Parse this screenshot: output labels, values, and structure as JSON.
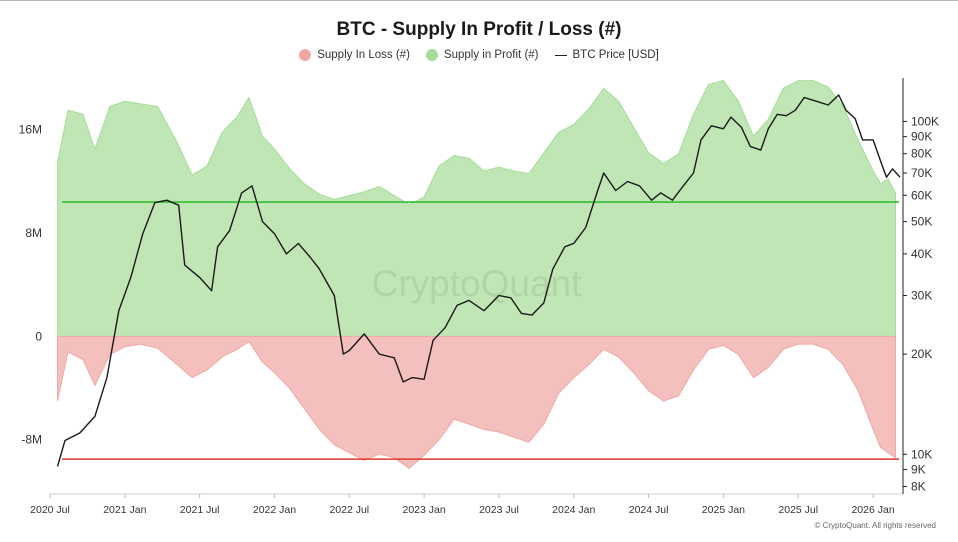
{
  "title": "BTC - Supply In Profit / Loss (#)",
  "legend": [
    {
      "label": "Supply In Loss (#)",
      "color": "#f0a8a4"
    },
    {
      "label": "Supply in Profit (#)",
      "color": "#a7dc98"
    },
    {
      "label": "BTC Price [USD]",
      "color": "#1a1a1a"
    }
  ],
  "watermark": "CryptoQuant",
  "credit": "© CryptoQuant. All rights reserved",
  "chart_data": {
    "type": "area",
    "title": "BTC - Supply In Profit / Loss (#)",
    "x_ticks": [
      "2020 Jul",
      "2021 Jan",
      "2021 Jul",
      "2022 Jan",
      "2022 Jul",
      "2023 Jan",
      "2023 Jul",
      "2024 Jan",
      "2024 Jul",
      "2025 Jan",
      "2025 Jul",
      "2026 Jan"
    ],
    "x_range": [
      "2020 Jul",
      "2026 Mar"
    ],
    "left_axis": {
      "ticks": [
        "16M",
        "8M",
        "0",
        "-8M"
      ],
      "tick_values": [
        16,
        8,
        0,
        -8
      ],
      "unit": "M",
      "range": [
        -12.2,
        20
      ]
    },
    "right_axis": {
      "scale": "log",
      "ticks": [
        "100K",
        "90K",
        "80K",
        "70K",
        "60K",
        "50K",
        "40K",
        "30K",
        "20K",
        "10K",
        "9K",
        "8K"
      ],
      "tick_values": [
        100,
        90,
        80,
        70,
        60,
        50,
        40,
        30,
        20,
        10,
        9,
        8
      ],
      "unit": "K"
    },
    "reference_lines": [
      {
        "axis": "left",
        "value": 10.4,
        "color": "#2fbf2f"
      },
      {
        "axis": "left",
        "value": -9.5,
        "color": "#e0392b"
      }
    ],
    "series": [
      {
        "name": "Supply in Profit (#)",
        "axis": "left",
        "color": "#a7dc98",
        "points": [
          [
            2020.55,
            13.5
          ],
          [
            2020.62,
            17.5
          ],
          [
            2020.72,
            17.2
          ],
          [
            2020.8,
            14.5
          ],
          [
            2020.9,
            17.8
          ],
          [
            2021.0,
            18.2
          ],
          [
            2021.1,
            18.0
          ],
          [
            2021.22,
            17.8
          ],
          [
            2021.35,
            15.0
          ],
          [
            2021.45,
            12.5
          ],
          [
            2021.55,
            13.2
          ],
          [
            2021.65,
            15.8
          ],
          [
            2021.75,
            17.0
          ],
          [
            2021.83,
            18.5
          ],
          [
            2021.92,
            15.5
          ],
          [
            2022.0,
            14.5
          ],
          [
            2022.1,
            13.0
          ],
          [
            2022.2,
            11.8
          ],
          [
            2022.3,
            11.0
          ],
          [
            2022.4,
            10.6
          ],
          [
            2022.5,
            10.9
          ],
          [
            2022.6,
            11.2
          ],
          [
            2022.7,
            11.6
          ],
          [
            2022.8,
            10.9
          ],
          [
            2022.9,
            10.2
          ],
          [
            2023.0,
            10.8
          ],
          [
            2023.1,
            13.2
          ],
          [
            2023.2,
            14.0
          ],
          [
            2023.3,
            13.8
          ],
          [
            2023.4,
            12.8
          ],
          [
            2023.5,
            13.1
          ],
          [
            2023.6,
            12.8
          ],
          [
            2023.7,
            12.6
          ],
          [
            2023.8,
            14.2
          ],
          [
            2023.9,
            15.8
          ],
          [
            2024.0,
            16.4
          ],
          [
            2024.1,
            17.6
          ],
          [
            2024.2,
            19.2
          ],
          [
            2024.3,
            18.2
          ],
          [
            2024.4,
            16.2
          ],
          [
            2024.5,
            14.2
          ],
          [
            2024.6,
            13.4
          ],
          [
            2024.7,
            14.1
          ],
          [
            2024.8,
            17.2
          ],
          [
            2024.9,
            19.5
          ],
          [
            2025.0,
            19.8
          ],
          [
            2025.1,
            18.2
          ],
          [
            2025.2,
            15.5
          ],
          [
            2025.3,
            16.8
          ],
          [
            2025.4,
            19.2
          ],
          [
            2025.5,
            19.8
          ],
          [
            2025.6,
            19.8
          ],
          [
            2025.7,
            19.3
          ],
          [
            2025.8,
            17.8
          ],
          [
            2025.9,
            15.2
          ],
          [
            2026.0,
            12.8
          ],
          [
            2026.05,
            11.8
          ],
          [
            2026.1,
            12.2
          ],
          [
            2026.15,
            11.1
          ]
        ]
      },
      {
        "name": "Supply In Loss (#)",
        "axis": "left",
        "color": "#f0a8a4",
        "points": [
          [
            2020.55,
            -5.0
          ],
          [
            2020.62,
            -1.2
          ],
          [
            2020.72,
            -1.8
          ],
          [
            2020.8,
            -3.8
          ],
          [
            2020.9,
            -1.4
          ],
          [
            2021.0,
            -0.8
          ],
          [
            2021.1,
            -0.6
          ],
          [
            2021.22,
            -0.9
          ],
          [
            2021.35,
            -2.2
          ],
          [
            2021.45,
            -3.2
          ],
          [
            2021.55,
            -2.6
          ],
          [
            2021.65,
            -1.6
          ],
          [
            2021.75,
            -1.0
          ],
          [
            2021.83,
            -0.4
          ],
          [
            2021.92,
            -2.0
          ],
          [
            2022.0,
            -2.8
          ],
          [
            2022.1,
            -4.0
          ],
          [
            2022.2,
            -5.6
          ],
          [
            2022.3,
            -7.2
          ],
          [
            2022.4,
            -8.4
          ],
          [
            2022.5,
            -9.0
          ],
          [
            2022.6,
            -9.6
          ],
          [
            2022.7,
            -9.1
          ],
          [
            2022.8,
            -9.4
          ],
          [
            2022.9,
            -10.2
          ],
          [
            2023.0,
            -9.2
          ],
          [
            2023.1,
            -8.0
          ],
          [
            2023.2,
            -6.4
          ],
          [
            2023.3,
            -6.8
          ],
          [
            2023.4,
            -7.2
          ],
          [
            2023.5,
            -7.4
          ],
          [
            2023.6,
            -7.8
          ],
          [
            2023.7,
            -8.2
          ],
          [
            2023.8,
            -6.8
          ],
          [
            2023.9,
            -4.4
          ],
          [
            2024.0,
            -3.2
          ],
          [
            2024.1,
            -2.2
          ],
          [
            2024.2,
            -1.0
          ],
          [
            2024.3,
            -1.6
          ],
          [
            2024.4,
            -2.8
          ],
          [
            2024.5,
            -4.2
          ],
          [
            2024.6,
            -5.0
          ],
          [
            2024.7,
            -4.6
          ],
          [
            2024.8,
            -2.6
          ],
          [
            2024.9,
            -1.0
          ],
          [
            2025.0,
            -0.7
          ],
          [
            2025.1,
            -1.4
          ],
          [
            2025.2,
            -3.2
          ],
          [
            2025.3,
            -2.4
          ],
          [
            2025.4,
            -1.0
          ],
          [
            2025.5,
            -0.6
          ],
          [
            2025.6,
            -0.6
          ],
          [
            2025.7,
            -1.0
          ],
          [
            2025.8,
            -2.2
          ],
          [
            2025.9,
            -4.2
          ],
          [
            2026.0,
            -7.2
          ],
          [
            2026.05,
            -8.6
          ],
          [
            2026.1,
            -9.0
          ],
          [
            2026.15,
            -9.4
          ]
        ]
      },
      {
        "name": "BTC Price [USD]",
        "axis": "right",
        "color": "#1a1a1a",
        "points": [
          [
            2020.55,
            9.2
          ],
          [
            2020.6,
            11.0
          ],
          [
            2020.7,
            11.6
          ],
          [
            2020.8,
            13.0
          ],
          [
            2020.88,
            17.0
          ],
          [
            2020.96,
            27.0
          ],
          [
            2021.04,
            34.0
          ],
          [
            2021.12,
            46.0
          ],
          [
            2021.2,
            57.0
          ],
          [
            2021.28,
            58.0
          ],
          [
            2021.36,
            56.0
          ],
          [
            2021.4,
            37.0
          ],
          [
            2021.5,
            34.0
          ],
          [
            2021.58,
            31.0
          ],
          [
            2021.62,
            42.0
          ],
          [
            2021.7,
            47.0
          ],
          [
            2021.78,
            61.0
          ],
          [
            2021.85,
            64.0
          ],
          [
            2021.92,
            50.0
          ],
          [
            2022.0,
            46.0
          ],
          [
            2022.08,
            40.0
          ],
          [
            2022.16,
            43.0
          ],
          [
            2022.24,
            39.0
          ],
          [
            2022.3,
            36.0
          ],
          [
            2022.4,
            30.0
          ],
          [
            2022.46,
            20.0
          ],
          [
            2022.5,
            20.5
          ],
          [
            2022.6,
            23.0
          ],
          [
            2022.7,
            20.0
          ],
          [
            2022.8,
            19.5
          ],
          [
            2022.86,
            16.5
          ],
          [
            2022.92,
            17.0
          ],
          [
            2023.0,
            16.8
          ],
          [
            2023.06,
            22.0
          ],
          [
            2023.14,
            24.0
          ],
          [
            2023.22,
            28.0
          ],
          [
            2023.3,
            29.0
          ],
          [
            2023.4,
            27.0
          ],
          [
            2023.5,
            30.0
          ],
          [
            2023.58,
            29.5
          ],
          [
            2023.65,
            26.5
          ],
          [
            2023.72,
            26.2
          ],
          [
            2023.8,
            28.5
          ],
          [
            2023.86,
            36.0
          ],
          [
            2023.94,
            42.0
          ],
          [
            2024.0,
            43.0
          ],
          [
            2024.08,
            48.0
          ],
          [
            2024.16,
            62.0
          ],
          [
            2024.2,
            70.0
          ],
          [
            2024.28,
            62.0
          ],
          [
            2024.36,
            66.0
          ],
          [
            2024.44,
            64.0
          ],
          [
            2024.52,
            58.0
          ],
          [
            2024.58,
            61.0
          ],
          [
            2024.66,
            58.0
          ],
          [
            2024.72,
            63.0
          ],
          [
            2024.8,
            70.0
          ],
          [
            2024.85,
            88.0
          ],
          [
            2024.92,
            97.0
          ],
          [
            2025.0,
            95.0
          ],
          [
            2025.05,
            103.0
          ],
          [
            2025.12,
            96.0
          ],
          [
            2025.18,
            84.0
          ],
          [
            2025.25,
            82.0
          ],
          [
            2025.3,
            95.0
          ],
          [
            2025.36,
            105.0
          ],
          [
            2025.42,
            104.0
          ],
          [
            2025.48,
            108.0
          ],
          [
            2025.54,
            118.0
          ],
          [
            2025.62,
            115.0
          ],
          [
            2025.7,
            112.0
          ],
          [
            2025.77,
            120.0
          ],
          [
            2025.82,
            108.0
          ],
          [
            2025.88,
            102.0
          ],
          [
            2025.93,
            88.0
          ],
          [
            2026.0,
            88.0
          ],
          [
            2026.05,
            76.0
          ],
          [
            2026.09,
            68.0
          ],
          [
            2026.13,
            72.0
          ],
          [
            2026.18,
            68.0
          ]
        ]
      }
    ],
    "grid": false,
    "legend_position": "top-center"
  }
}
